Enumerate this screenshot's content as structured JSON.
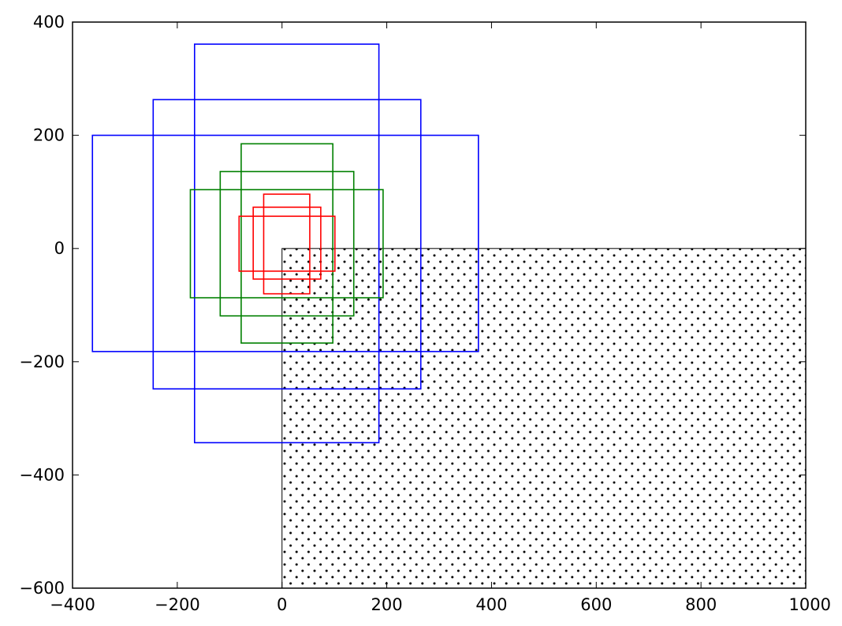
{
  "chart_data": {
    "type": "rectangles",
    "title": "",
    "xlabel": "",
    "ylabel": "",
    "xlim": [
      -400,
      1000
    ],
    "ylim": [
      -600,
      400
    ],
    "grid": false,
    "legend": "none",
    "x_ticks": [
      -400,
      -200,
      0,
      200,
      400,
      600,
      800,
      1000
    ],
    "y_ticks": [
      -600,
      -400,
      -200,
      0,
      200,
      400
    ],
    "x_tick_labels": [
      "−400",
      "−200",
      "0",
      "200",
      "400",
      "600",
      "800",
      "1000"
    ],
    "y_tick_labels": [
      "−600",
      "−400",
      "−200",
      "0",
      "200",
      "400"
    ],
    "hatched_region": {
      "x0": 0,
      "y0": -600,
      "x1": 1000,
      "y1": 0,
      "edge_color": "#000000",
      "pattern": "dots"
    },
    "series": [
      {
        "color": "#0000ff",
        "rectangles": [
          {
            "x0": -362,
            "y0": -182,
            "x1": 375,
            "y1": 200
          },
          {
            "x0": -246,
            "y0": -248,
            "x1": 265,
            "y1": 263
          },
          {
            "x0": -167,
            "y0": -343,
            "x1": 185,
            "y1": 361
          }
        ]
      },
      {
        "color": "#008000",
        "rectangles": [
          {
            "x0": -175,
            "y0": -87,
            "x1": 193,
            "y1": 104
          },
          {
            "x0": -118,
            "y0": -119,
            "x1": 137,
            "y1": 136
          },
          {
            "x0": -78,
            "y0": -167,
            "x1": 97,
            "y1": 185
          }
        ]
      },
      {
        "color": "#ff0000",
        "rectangles": [
          {
            "x0": -82,
            "y0": -40,
            "x1": 101,
            "y1": 57
          },
          {
            "x0": -55,
            "y0": -54,
            "x1": 74,
            "y1": 73
          },
          {
            "x0": -35,
            "y0": -80,
            "x1": 53,
            "y1": 96
          }
        ]
      }
    ]
  }
}
